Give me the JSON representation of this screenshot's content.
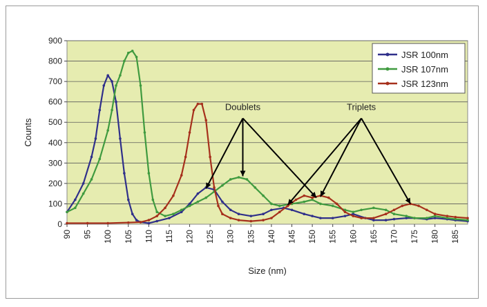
{
  "chart_data": {
    "type": "line",
    "title": "",
    "xlabel": "Size (nm)",
    "ylabel": "Counts",
    "xlim": [
      90,
      188
    ],
    "ylim": [
      0,
      900
    ],
    "xticks": [
      "90",
      "95",
      "100",
      "105",
      "110",
      "115",
      "120",
      "125",
      "130",
      "135",
      "140",
      "145",
      "150",
      "155",
      "160",
      "165",
      "170",
      "175",
      "180",
      "185"
    ],
    "yticks": [
      "0",
      "100",
      "200",
      "300",
      "400",
      "500",
      "600",
      "700",
      "800",
      "900"
    ],
    "grid": "horizontal",
    "legend_position": "top-right",
    "plot_background": "#e6ecb0",
    "series": [
      {
        "name": "JSR 100nm",
        "color": "#2f2f8a",
        "points": [
          [
            90,
            60
          ],
          [
            92,
            120
          ],
          [
            94,
            200
          ],
          [
            96,
            330
          ],
          [
            97,
            420
          ],
          [
            98,
            560
          ],
          [
            99,
            680
          ],
          [
            100,
            730
          ],
          [
            101,
            700
          ],
          [
            102,
            600
          ],
          [
            103,
            420
          ],
          [
            104,
            250
          ],
          [
            105,
            120
          ],
          [
            106,
            50
          ],
          [
            107,
            20
          ],
          [
            108,
            10
          ],
          [
            110,
            5
          ],
          [
            112,
            15
          ],
          [
            115,
            30
          ],
          [
            118,
            60
          ],
          [
            120,
            100
          ],
          [
            122,
            150
          ],
          [
            124,
            180
          ],
          [
            126,
            170
          ],
          [
            128,
            110
          ],
          [
            130,
            70
          ],
          [
            132,
            50
          ],
          [
            135,
            40
          ],
          [
            138,
            50
          ],
          [
            140,
            70
          ],
          [
            143,
            80
          ],
          [
            145,
            70
          ],
          [
            148,
            50
          ],
          [
            150,
            40
          ],
          [
            152,
            30
          ],
          [
            155,
            30
          ],
          [
            158,
            40
          ],
          [
            160,
            50
          ],
          [
            163,
            30
          ],
          [
            165,
            20
          ],
          [
            168,
            20
          ],
          [
            170,
            25
          ],
          [
            173,
            30
          ],
          [
            175,
            30
          ],
          [
            178,
            25
          ],
          [
            180,
            30
          ],
          [
            183,
            25
          ],
          [
            185,
            20
          ],
          [
            188,
            15
          ]
        ]
      },
      {
        "name": "JSR 107nm",
        "color": "#3f9a3f",
        "points": [
          [
            90,
            60
          ],
          [
            92,
            80
          ],
          [
            94,
            150
          ],
          [
            96,
            220
          ],
          [
            98,
            320
          ],
          [
            100,
            460
          ],
          [
            101,
            560
          ],
          [
            102,
            680
          ],
          [
            103,
            730
          ],
          [
            104,
            800
          ],
          [
            105,
            840
          ],
          [
            106,
            850
          ],
          [
            107,
            820
          ],
          [
            108,
            680
          ],
          [
            109,
            450
          ],
          [
            110,
            250
          ],
          [
            111,
            120
          ],
          [
            112,
            60
          ],
          [
            114,
            40
          ],
          [
            116,
            50
          ],
          [
            118,
            70
          ],
          [
            120,
            90
          ],
          [
            122,
            110
          ],
          [
            124,
            130
          ],
          [
            126,
            160
          ],
          [
            128,
            190
          ],
          [
            130,
            220
          ],
          [
            132,
            230
          ],
          [
            134,
            220
          ],
          [
            136,
            180
          ],
          [
            138,
            140
          ],
          [
            140,
            100
          ],
          [
            142,
            90
          ],
          [
            145,
            100
          ],
          [
            148,
            110
          ],
          [
            150,
            120
          ],
          [
            152,
            100
          ],
          [
            155,
            90
          ],
          [
            158,
            70
          ],
          [
            160,
            60
          ],
          [
            162,
            70
          ],
          [
            165,
            80
          ],
          [
            168,
            70
          ],
          [
            170,
            50
          ],
          [
            173,
            40
          ],
          [
            175,
            30
          ],
          [
            178,
            30
          ],
          [
            180,
            40
          ],
          [
            183,
            30
          ],
          [
            185,
            25
          ],
          [
            188,
            20
          ]
        ]
      },
      {
        "name": "JSR 123nm",
        "color": "#a6301c",
        "points": [
          [
            90,
            5
          ],
          [
            95,
            5
          ],
          [
            100,
            5
          ],
          [
            105,
            8
          ],
          [
            108,
            10
          ],
          [
            110,
            20
          ],
          [
            112,
            40
          ],
          [
            114,
            80
          ],
          [
            116,
            140
          ],
          [
            118,
            240
          ],
          [
            119,
            330
          ],
          [
            120,
            450
          ],
          [
            121,
            560
          ],
          [
            122,
            590
          ],
          [
            123,
            590
          ],
          [
            124,
            510
          ],
          [
            125,
            330
          ],
          [
            126,
            180
          ],
          [
            127,
            90
          ],
          [
            128,
            50
          ],
          [
            130,
            30
          ],
          [
            132,
            20
          ],
          [
            135,
            15
          ],
          [
            138,
            20
          ],
          [
            140,
            30
          ],
          [
            142,
            60
          ],
          [
            144,
            90
          ],
          [
            146,
            120
          ],
          [
            148,
            140
          ],
          [
            150,
            130
          ],
          [
            152,
            140
          ],
          [
            154,
            130
          ],
          [
            156,
            100
          ],
          [
            158,
            60
          ],
          [
            160,
            40
          ],
          [
            162,
            30
          ],
          [
            165,
            30
          ],
          [
            168,
            50
          ],
          [
            170,
            70
          ],
          [
            172,
            90
          ],
          [
            174,
            100
          ],
          [
            176,
            90
          ],
          [
            178,
            70
          ],
          [
            180,
            50
          ],
          [
            183,
            40
          ],
          [
            185,
            35
          ],
          [
            188,
            30
          ]
        ]
      }
    ],
    "annotations": [
      {
        "label": "Doublets",
        "anchor_x": 133,
        "anchor_y": 560,
        "targets": [
          [
            124,
            175
          ],
          [
            133,
            235
          ],
          [
            151,
            130
          ]
        ]
      },
      {
        "label": "Triplets",
        "anchor_x": 162,
        "anchor_y": 560,
        "targets": [
          [
            144,
            95
          ],
          [
            152,
            135
          ],
          [
            174,
            100
          ]
        ]
      }
    ]
  }
}
